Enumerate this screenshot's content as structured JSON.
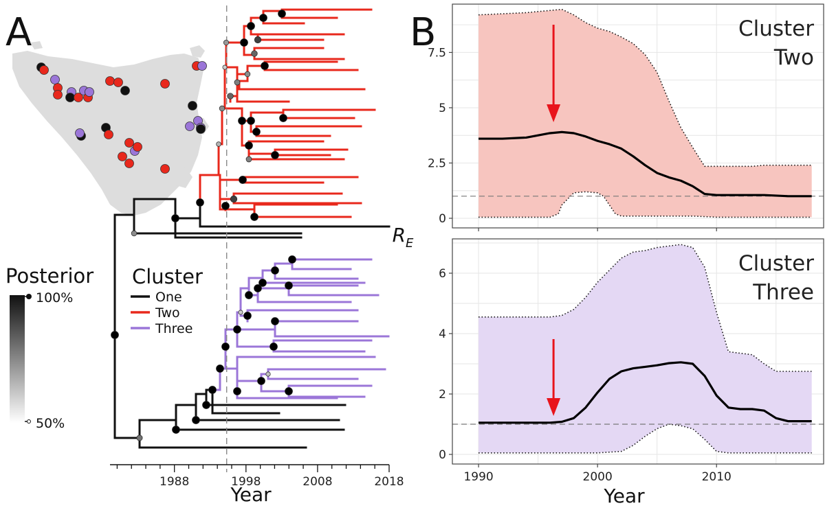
{
  "panels": {
    "a_label": "A",
    "b_label": "B"
  },
  "colors": {
    "cluster_one": "#111111",
    "cluster_two": "#e8281c",
    "cluster_three": "#9b76d8",
    "two_ci_fill": "#f7c5bf",
    "three_ci_fill": "#e4d8f4",
    "arrow": "#e8141b",
    "map_land": "#dddddd"
  },
  "legend": {
    "cluster_title": "Cluster",
    "entries": [
      {
        "label": "One",
        "color": "#111111"
      },
      {
        "label": "Two",
        "color": "#e8281c"
      },
      {
        "label": "Three",
        "color": "#9b76d8"
      }
    ],
    "posterior_title": "Posterior",
    "posterior_max": "100%",
    "posterior_min": "50%"
  },
  "chart_data": [
    {
      "type": "phylogenetic-tree",
      "panel": "A",
      "xlabel": "Year",
      "xticks": [
        "1988",
        "1998",
        "2008",
        "2018"
      ],
      "xlim": [
        1979,
        2018
      ],
      "reference_year": 1995.3,
      "clusters": [
        "One",
        "Two",
        "Three"
      ]
    },
    {
      "type": "area",
      "panel": "B",
      "title": "Cluster Two",
      "ylabel": "R_E",
      "xlim": [
        1990,
        2018
      ],
      "ylim": [
        0,
        9.5
      ],
      "yticks": [
        "0",
        "2.5",
        "5",
        "7.5"
      ],
      "xticks": [
        "1990",
        "2000",
        "2010"
      ],
      "reference_line": 1,
      "arrow_year": 1996.3,
      "median": {
        "x": [
          1990,
          1992,
          1994,
          1995,
          1996,
          1997,
          1998,
          1999,
          2000,
          2001,
          2002,
          2003,
          2004,
          2005,
          2006,
          2007,
          2008,
          2009,
          2010,
          2012,
          2014,
          2016,
          2018
        ],
        "y": [
          3.6,
          3.6,
          3.65,
          3.75,
          3.85,
          3.9,
          3.85,
          3.7,
          3.5,
          3.35,
          3.15,
          2.8,
          2.4,
          2.05,
          1.85,
          1.7,
          1.45,
          1.1,
          1.05,
          1.05,
          1.05,
          1.0,
          1.0
        ]
      },
      "upper": {
        "x": [
          1990,
          1994,
          1997,
          1998,
          1999,
          2000,
          2001,
          2002,
          2003,
          2004,
          2005,
          2006,
          2007,
          2008,
          2009,
          2012,
          2013,
          2014,
          2018
        ],
        "y": [
          9.2,
          9.3,
          9.45,
          9.2,
          8.85,
          8.6,
          8.45,
          8.2,
          7.9,
          7.4,
          6.6,
          5.3,
          4.1,
          3.2,
          2.35,
          2.35,
          2.35,
          2.4,
          2.4
        ]
      },
      "lower": {
        "x": [
          1990,
          1996,
          1996.7,
          1997,
          1998,
          1999,
          2000,
          2000.5,
          2001,
          2001.5,
          2002,
          2008,
          2010,
          2018
        ],
        "y": [
          0.05,
          0.05,
          0.2,
          0.6,
          1.15,
          1.2,
          1.15,
          1.0,
          0.6,
          0.2,
          0.1,
          0.1,
          0.05,
          0.05
        ]
      }
    },
    {
      "type": "area",
      "panel": "B",
      "title": "Cluster Three",
      "ylabel": "R_E",
      "xlim": [
        1990,
        2018
      ],
      "ylim": [
        0,
        7
      ],
      "yticks": [
        "0",
        "2",
        "4",
        "6"
      ],
      "xticks": [
        "1990",
        "2000",
        "2010"
      ],
      "reference_line": 1,
      "arrow_year": 1996.3,
      "median": {
        "x": [
          1990,
          1994,
          1996,
          1997,
          1998,
          1999,
          2000,
          2001,
          2002,
          2003,
          2004,
          2005,
          2006,
          2007,
          2008,
          2009,
          2010,
          2011,
          2012,
          2013,
          2014,
          2015,
          2016,
          2018
        ],
        "y": [
          1.05,
          1.05,
          1.05,
          1.08,
          1.2,
          1.55,
          2.05,
          2.5,
          2.75,
          2.85,
          2.9,
          2.95,
          3.02,
          3.05,
          3.0,
          2.6,
          1.95,
          1.55,
          1.5,
          1.5,
          1.45,
          1.2,
          1.1,
          1.1
        ]
      },
      "upper": {
        "x": [
          1990,
          1996,
          1997,
          1998,
          1999,
          2000,
          2001,
          2002,
          2003,
          2004,
          2005,
          2006,
          2007,
          2008,
          2009,
          2010,
          2011,
          2013,
          2014,
          2015,
          2018
        ],
        "y": [
          4.55,
          4.55,
          4.6,
          4.8,
          5.2,
          5.7,
          6.1,
          6.5,
          6.7,
          6.75,
          6.85,
          6.9,
          6.95,
          6.85,
          6.2,
          4.7,
          3.4,
          3.3,
          3.0,
          2.75,
          2.75
        ]
      },
      "lower": {
        "x": [
          1990,
          2000,
          2002,
          2003,
          2004,
          2005,
          2006,
          2007,
          2008,
          2009,
          2010,
          2011,
          2014,
          2018
        ],
        "y": [
          0.05,
          0.05,
          0.1,
          0.3,
          0.6,
          0.85,
          1.0,
          0.95,
          0.85,
          0.5,
          0.1,
          0.05,
          0.05,
          0.05
        ]
      }
    }
  ]
}
